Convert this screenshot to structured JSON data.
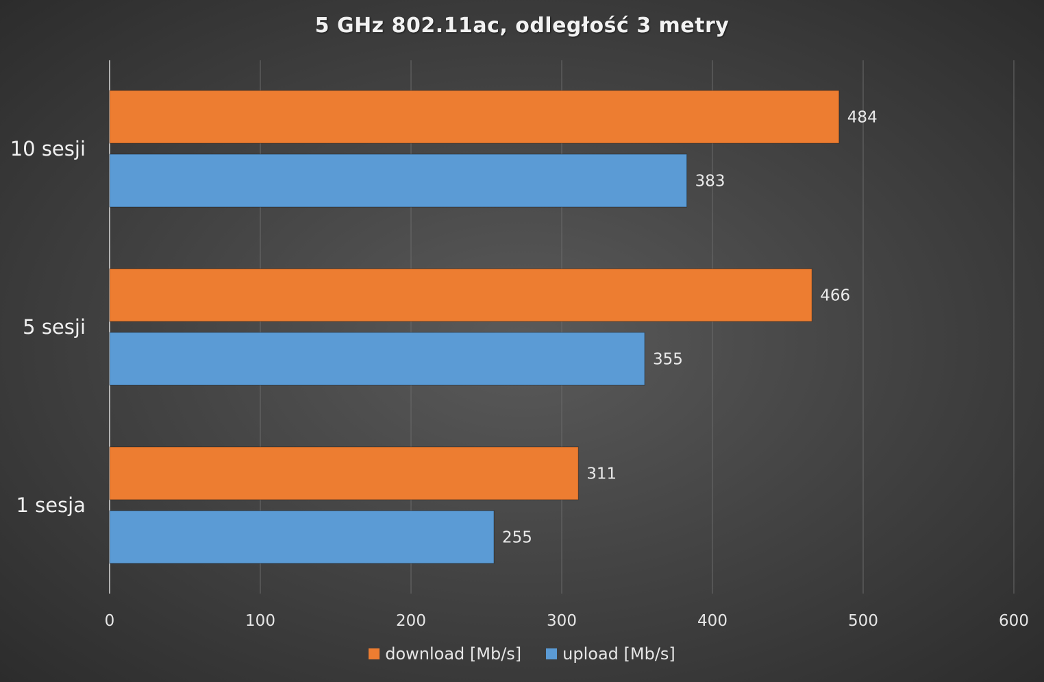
{
  "chart_data": {
    "type": "bar",
    "orientation": "horizontal",
    "title": "5 GHz 802.11ac, odległość 3 metry",
    "categories": [
      "10 sesji",
      "5 sesji",
      "1 sesja"
    ],
    "series": [
      {
        "name": "download [Mb/s]",
        "values": [
          484,
          466,
          311
        ],
        "color": "#ED7D31"
      },
      {
        "name": "upload [Mb/s]",
        "values": [
          383,
          355,
          255
        ],
        "color": "#5B9BD5"
      }
    ],
    "xlim": [
      0,
      600
    ],
    "xticks": [
      0,
      100,
      200,
      300,
      400,
      500,
      600
    ],
    "grid": true,
    "legend_position": "bottom"
  }
}
